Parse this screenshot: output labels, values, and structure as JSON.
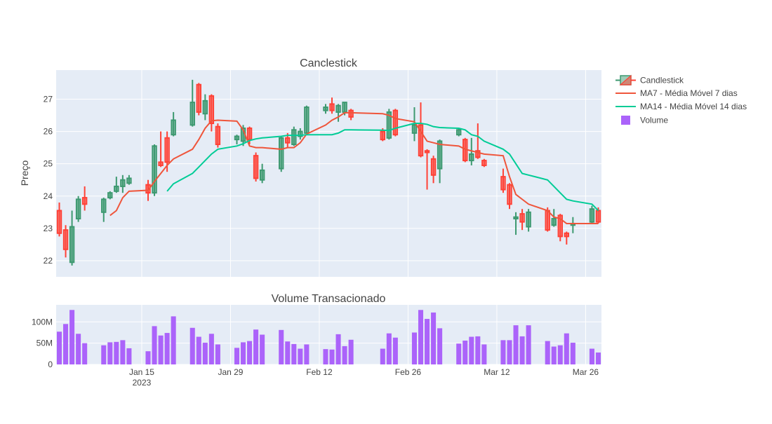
{
  "chart_data": [
    {
      "type": "candlestick",
      "title": "Canclestick",
      "ylabel": "Preço",
      "ylim": [
        21.5,
        27.9
      ],
      "yticks": [
        22,
        23,
        24,
        25,
        26,
        27
      ],
      "grid": true,
      "colors": {
        "increasing": "#3d9970",
        "decreasing": "#ff4136",
        "ma7": "#ef553b",
        "ma14": "#00cc96"
      },
      "series": [
        {
          "name": "Candlestick",
          "x": [
            "2023-01-02",
            "2023-01-03",
            "2023-01-04",
            "2023-01-05",
            "2023-01-06",
            "2023-01-09",
            "2023-01-10",
            "2023-01-11",
            "2023-01-12",
            "2023-01-13",
            "2023-01-16",
            "2023-01-17",
            "2023-01-18",
            "2023-01-19",
            "2023-01-20",
            "2023-01-23",
            "2023-01-24",
            "2023-01-25",
            "2023-01-26",
            "2023-01-27",
            "2023-01-30",
            "2023-01-31",
            "2023-02-01",
            "2023-02-02",
            "2023-02-03",
            "2023-02-06",
            "2023-02-07",
            "2023-02-08",
            "2023-02-09",
            "2023-02-10",
            "2023-02-13",
            "2023-02-14",
            "2023-02-15",
            "2023-02-16",
            "2023-02-17",
            "2023-02-22",
            "2023-02-23",
            "2023-02-24",
            "2023-02-27",
            "2023-02-28",
            "2023-03-01",
            "2023-03-02",
            "2023-03-03",
            "2023-03-06",
            "2023-03-07",
            "2023-03-08",
            "2023-03-09",
            "2023-03-10",
            "2023-03-13",
            "2023-03-14",
            "2023-03-15",
            "2023-03-16",
            "2023-03-17",
            "2023-03-20",
            "2023-03-21",
            "2023-03-22",
            "2023-03-23",
            "2023-03-24",
            "2023-03-27",
            "2023-03-28"
          ],
          "open": [
            23.55,
            22.95,
            21.95,
            23.3,
            23.95,
            23.5,
            23.95,
            24.15,
            24.3,
            24.4,
            24.35,
            24.1,
            25.05,
            25.8,
            25.9,
            26.2,
            27.45,
            26.55,
            27.1,
            26.15,
            25.75,
            25.7,
            26.1,
            25.25,
            24.5,
            24.85,
            25.8,
            25.6,
            25.85,
            25.95,
            26.65,
            26.85,
            26.6,
            26.6,
            26.65,
            26.0,
            25.8,
            26.65,
            25.95,
            26.2,
            25.4,
            25.15,
            24.85,
            25.9,
            25.75,
            25.1,
            25.4,
            25.1,
            24.6,
            24.35,
            23.3,
            23.45,
            23.05,
            23.55,
            23.1,
            23.4,
            22.85,
            23.1,
            23.2,
            23.55
          ],
          "close": [
            22.85,
            22.35,
            23.05,
            23.9,
            23.75,
            23.9,
            24.1,
            24.3,
            24.5,
            24.55,
            24.1,
            25.55,
            24.95,
            25.05,
            26.35,
            26.9,
            26.6,
            26.95,
            26.25,
            25.6,
            25.85,
            26.1,
            25.75,
            24.55,
            24.8,
            25.8,
            25.65,
            26.05,
            26.0,
            26.75,
            26.75,
            26.65,
            26.8,
            26.9,
            26.45,
            25.75,
            26.6,
            25.9,
            26.2,
            25.25,
            25.35,
            24.65,
            25.7,
            26.05,
            25.1,
            25.3,
            25.2,
            24.95,
            24.2,
            23.75,
            23.35,
            23.2,
            23.5,
            22.95,
            23.3,
            22.75,
            22.75,
            23.15,
            23.6,
            23.2
          ],
          "high": [
            23.8,
            23.1,
            23.55,
            24.0,
            24.3,
            23.95,
            24.15,
            24.6,
            24.65,
            24.65,
            24.5,
            25.6,
            26.0,
            26.0,
            26.6,
            27.6,
            27.5,
            27.15,
            27.15,
            26.25,
            25.9,
            26.2,
            26.15,
            25.35,
            25.0,
            25.85,
            25.95,
            26.15,
            26.1,
            26.8,
            26.85,
            27.05,
            26.85,
            26.9,
            26.7,
            26.1,
            26.7,
            26.7,
            26.75,
            26.9,
            25.45,
            25.25,
            25.75,
            26.1,
            25.8,
            25.8,
            26.25,
            25.15,
            24.85,
            24.4,
            23.5,
            23.6,
            23.6,
            23.65,
            23.6,
            23.45,
            22.9,
            23.35,
            23.7,
            23.65
          ],
          "low": [
            22.75,
            22.1,
            21.85,
            23.2,
            23.55,
            23.2,
            23.9,
            24.1,
            24.1,
            24.35,
            23.85,
            24.0,
            24.9,
            24.75,
            25.85,
            26.15,
            26.5,
            26.35,
            26.0,
            25.5,
            25.6,
            25.55,
            25.6,
            24.45,
            24.4,
            24.75,
            25.5,
            25.55,
            25.75,
            25.9,
            26.55,
            26.55,
            26.3,
            26.5,
            26.35,
            25.7,
            25.75,
            25.85,
            25.7,
            25.2,
            24.2,
            24.4,
            24.4,
            25.85,
            25.05,
            24.95,
            25.15,
            24.9,
            24.1,
            23.6,
            22.8,
            22.95,
            22.9,
            22.9,
            23.05,
            22.6,
            22.5,
            22.85,
            23.15,
            23.15
          ]
        },
        {
          "name": "MA7 - Média Móvel 7 dias",
          "x": [
            "2023-01-10",
            "2023-01-11",
            "2023-01-12",
            "2023-01-13",
            "2023-01-16",
            "2023-01-17",
            "2023-01-18",
            "2023-01-19",
            "2023-01-20",
            "2023-01-23",
            "2023-01-24",
            "2023-01-25",
            "2023-01-26",
            "2023-01-27",
            "2023-01-30",
            "2023-01-31",
            "2023-02-01",
            "2023-02-02",
            "2023-02-03",
            "2023-02-06",
            "2023-02-07",
            "2023-02-08",
            "2023-02-09",
            "2023-02-10",
            "2023-02-13",
            "2023-02-14",
            "2023-02-15",
            "2023-02-16",
            "2023-02-17",
            "2023-02-22",
            "2023-02-23",
            "2023-02-24",
            "2023-02-27",
            "2023-02-28",
            "2023-03-01",
            "2023-03-02",
            "2023-03-03",
            "2023-03-06",
            "2023-03-07",
            "2023-03-08",
            "2023-03-09",
            "2023-03-10",
            "2023-03-13",
            "2023-03-14",
            "2023-03-15",
            "2023-03-16",
            "2023-03-17",
            "2023-03-20",
            "2023-03-21",
            "2023-03-22",
            "2023-03-23",
            "2023-03-24",
            "2023-03-27",
            "2023-03-28"
          ],
          "values": [
            23.4,
            23.55,
            23.95,
            24.15,
            24.18,
            24.45,
            24.7,
            24.95,
            25.15,
            25.45,
            25.75,
            26.1,
            26.33,
            26.35,
            26.32,
            26.05,
            25.55,
            25.5,
            25.5,
            25.45,
            25.5,
            25.5,
            25.65,
            25.92,
            26.2,
            26.35,
            26.45,
            26.58,
            26.58,
            26.55,
            26.5,
            26.4,
            26.3,
            26.0,
            25.7,
            25.65,
            25.6,
            25.55,
            25.45,
            25.4,
            25.35,
            25.3,
            25.25,
            24.6,
            24.05,
            23.9,
            23.75,
            23.55,
            23.35,
            23.3,
            23.15,
            23.15,
            23.15,
            23.15
          ]
        },
        {
          "name": "MA14 - Média Móvel 14 dias",
          "x": [
            "2023-01-19",
            "2023-01-20",
            "2023-01-23",
            "2023-01-24",
            "2023-01-25",
            "2023-01-26",
            "2023-01-27",
            "2023-01-30",
            "2023-01-31",
            "2023-02-01",
            "2023-02-02",
            "2023-02-03",
            "2023-02-06",
            "2023-02-07",
            "2023-02-08",
            "2023-02-09",
            "2023-02-10",
            "2023-02-13",
            "2023-02-14",
            "2023-02-15",
            "2023-02-16",
            "2023-02-17",
            "2023-02-22",
            "2023-02-23",
            "2023-02-24",
            "2023-02-27",
            "2023-02-28",
            "2023-03-01",
            "2023-03-02",
            "2023-03-03",
            "2023-03-06",
            "2023-03-07",
            "2023-03-08",
            "2023-03-09",
            "2023-03-10",
            "2023-03-13",
            "2023-03-14",
            "2023-03-15",
            "2023-03-16",
            "2023-03-17",
            "2023-03-20",
            "2023-03-21",
            "2023-03-22",
            "2023-03-23",
            "2023-03-24",
            "2023-03-27",
            "2023-03-28"
          ],
          "values": [
            24.15,
            24.38,
            24.7,
            24.9,
            25.1,
            25.3,
            25.45,
            25.55,
            25.62,
            25.72,
            25.77,
            25.8,
            25.85,
            25.88,
            25.88,
            25.88,
            25.9,
            25.9,
            25.9,
            25.95,
            26.05,
            26.05,
            26.04,
            26.03,
            26.1,
            26.25,
            26.25,
            26.22,
            26.15,
            26.12,
            26.1,
            26.05,
            25.9,
            25.85,
            25.7,
            25.45,
            25.3,
            25.0,
            24.7,
            24.65,
            24.5,
            24.3,
            24.1,
            23.9,
            23.85,
            23.75,
            23.55
          ]
        }
      ]
    },
    {
      "type": "bar",
      "title": "Volume Transacionado",
      "ylim": [
        0,
        140
      ],
      "yticks": [
        0,
        50,
        100
      ],
      "ytick_labels": [
        "0",
        "50M",
        "100M"
      ],
      "xticks": [
        "2023-01-15",
        "2023-01-29",
        "2023-02-12",
        "2023-02-26",
        "2023-03-12",
        "2023-03-26"
      ],
      "xtick_labels": [
        [
          "Jan 15",
          "2023"
        ],
        [
          "Jan 29"
        ],
        [
          "Feb 12"
        ],
        [
          "Feb 26"
        ],
        [
          "Mar 12"
        ],
        [
          "Mar 26"
        ]
      ],
      "colors": {
        "bar": "#ab63fa"
      },
      "series": [
        {
          "name": "Volume",
          "x": [
            "2023-01-02",
            "2023-01-03",
            "2023-01-04",
            "2023-01-05",
            "2023-01-06",
            "2023-01-09",
            "2023-01-10",
            "2023-01-11",
            "2023-01-12",
            "2023-01-13",
            "2023-01-16",
            "2023-01-17",
            "2023-01-18",
            "2023-01-19",
            "2023-01-20",
            "2023-01-23",
            "2023-01-24",
            "2023-01-25",
            "2023-01-26",
            "2023-01-27",
            "2023-01-30",
            "2023-01-31",
            "2023-02-01",
            "2023-02-02",
            "2023-02-03",
            "2023-02-06",
            "2023-02-07",
            "2023-02-08",
            "2023-02-09",
            "2023-02-10",
            "2023-02-13",
            "2023-02-14",
            "2023-02-15",
            "2023-02-16",
            "2023-02-17",
            "2023-02-22",
            "2023-02-23",
            "2023-02-24",
            "2023-02-27",
            "2023-02-28",
            "2023-03-01",
            "2023-03-02",
            "2023-03-03",
            "2023-03-06",
            "2023-03-07",
            "2023-03-08",
            "2023-03-09",
            "2023-03-10",
            "2023-03-13",
            "2023-03-14",
            "2023-03-15",
            "2023-03-16",
            "2023-03-17",
            "2023-03-20",
            "2023-03-21",
            "2023-03-22",
            "2023-03-23",
            "2023-03-24",
            "2023-03-27",
            "2023-03-28"
          ],
          "values": [
            77,
            95,
            128,
            72,
            50,
            45,
            52,
            53,
            57,
            38,
            31,
            90,
            68,
            74,
            113,
            86,
            65,
            51,
            72,
            47,
            39,
            52,
            55,
            82,
            70,
            81,
            54,
            48,
            37,
            47,
            36,
            35,
            71,
            43,
            58,
            37,
            73,
            63,
            75,
            128,
            107,
            122,
            85,
            49,
            56,
            65,
            66,
            47,
            57,
            57,
            92,
            66,
            92,
            55,
            42,
            45,
            73,
            51,
            37,
            28
          ]
        }
      ]
    }
  ]
}
